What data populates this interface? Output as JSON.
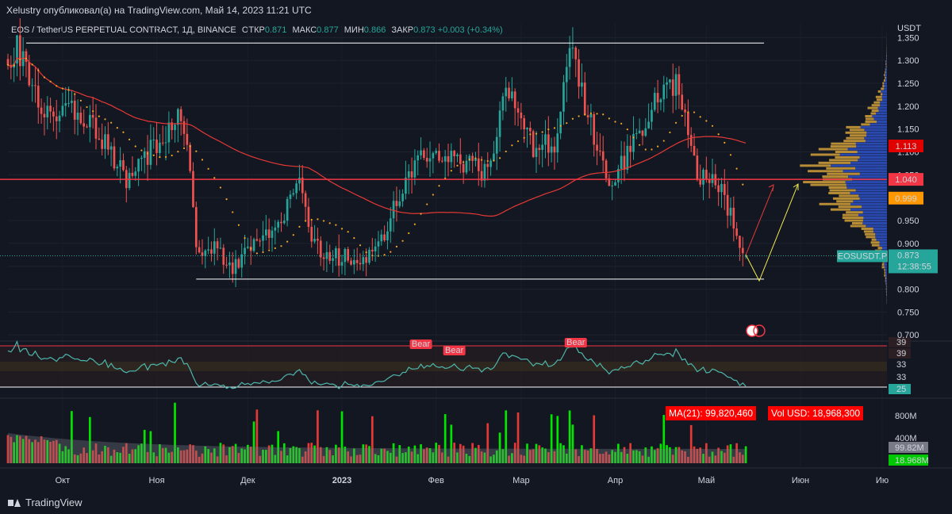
{
  "header": {
    "publisher_line": "Xelustry опубликовал(а) на TradingView.com, Май 14, 2023 11:21 UTC"
  },
  "legend": {
    "title": "EOS / TetherUS PERPETUAL CONTRACT, 1Д, BINANCE",
    "open_label": "ОТКР",
    "open_value": "0.871",
    "high_label": "МАКС",
    "high_value": "0.877",
    "low_label": "МИН",
    "low_value": "0.866",
    "close_label": "ЗАКР",
    "close_value": "0.873",
    "change": "+0.003 (+0.34%)"
  },
  "axis": {
    "currency": "USDT"
  },
  "colors": {
    "background": "#131722",
    "up": "#26a69a",
    "down": "#ef5350",
    "ma_slow": "#e53935",
    "ma_fast_dotted": "#f5a623",
    "level_line": "#f23645",
    "box_line": "#ffffff",
    "projection_red": "#e53935",
    "projection_yellow": "#f2e94e",
    "rsi_line": "#4db6ac",
    "vol_up": "#00e600",
    "vol_down": "#e53935",
    "vp_up": "#2e52c9",
    "vp_down": "#d4a13a"
  },
  "price_badges": [
    {
      "label": "1.113",
      "bg": "#e00000",
      "fg": "#ffffff",
      "price": 1.113
    },
    {
      "label": "1.040",
      "bg": "#f23645",
      "fg": "#ffffff",
      "price": 1.04
    },
    {
      "label": "0.999",
      "bg": "#ff9800",
      "fg": "#000000",
      "price": 0.999
    }
  ],
  "current_price_badge": {
    "symbol": "EOSUSDT.P",
    "price": "0.873",
    "countdown": "12:38:55",
    "bg": "#26a69a",
    "value": 0.873
  },
  "rsi_panel": {
    "labels": [
      "39",
      "39",
      "33",
      "33",
      "25"
    ],
    "level_top": 39,
    "level_bottom": 25,
    "bear_label": "Bear"
  },
  "volume_panel": {
    "ma_box": "MA(21): 99,820,460",
    "vol_box": "Vol USD: 18,968,300",
    "labels": [
      {
        "text": "800M",
        "bg": "",
        "fg": "#d1d4dc"
      },
      {
        "text": "400M",
        "bg": "",
        "fg": "#d1d4dc"
      },
      {
        "text": "99.82M",
        "bg": "#787b86",
        "fg": "#ffffff"
      },
      {
        "text": "18.968M",
        "bg": "#00c800",
        "fg": "#000000"
      }
    ]
  },
  "footer": {
    "logo_text": "TradingView"
  },
  "chart_data": {
    "type": "candlestick",
    "title": "EOS / TetherUS PERPETUAL CONTRACT, 1Д, BINANCE",
    "ylabel": "USDT",
    "ylim": [
      0.69,
      1.38
    ],
    "y_ticks": [
      "1.350",
      "1.300",
      "1.250",
      "1.200",
      "1.150",
      "1.100",
      "1.050",
      "1.000",
      "0.950",
      "0.900",
      "0.850",
      "0.800",
      "0.750",
      "0.700"
    ],
    "x_ticks": [
      "Окт",
      "Ноя",
      "Дек",
      "2023",
      "Фев",
      "Мар",
      "Апр",
      "Май",
      "Июн",
      "Ию"
    ],
    "date_start": "2022-09-13",
    "date_end": "2023-06-30",
    "last_candle_date": "2023-05-14",
    "levels": {
      "horizontal_red": 1.04,
      "box_top": 1.338,
      "box_bottom": 0.822
    },
    "key_points": [
      {
        "date": "2022-09-13",
        "price": 1.3
      },
      {
        "date": "2022-09-16",
        "price": 1.33
      },
      {
        "date": "2022-09-24",
        "price": 1.2
      },
      {
        "date": "2022-10-09",
        "price": 1.18
      },
      {
        "date": "2022-10-22",
        "price": 1.04
      },
      {
        "date": "2022-11-01",
        "price": 1.12
      },
      {
        "date": "2022-11-09",
        "price": 1.19
      },
      {
        "date": "2022-11-12",
        "price": 1.08
      },
      {
        "date": "2022-11-14",
        "price": 0.88
      },
      {
        "date": "2022-11-18",
        "price": 0.9
      },
      {
        "date": "2022-11-26",
        "price": 0.85
      },
      {
        "date": "2022-12-10",
        "price": 0.93
      },
      {
        "date": "2022-12-18",
        "price": 1.03
      },
      {
        "date": "2022-12-22",
        "price": 0.9
      },
      {
        "date": "2022-12-28",
        "price": 0.87
      },
      {
        "date": "2023-01-08",
        "price": 0.87
      },
      {
        "date": "2023-01-15",
        "price": 0.92
      },
      {
        "date": "2023-01-22",
        "price": 1.05
      },
      {
        "date": "2023-01-30",
        "price": 1.1
      },
      {
        "date": "2023-02-08",
        "price": 1.08
      },
      {
        "date": "2023-02-18",
        "price": 1.05
      },
      {
        "date": "2023-02-24",
        "price": 1.24
      },
      {
        "date": "2023-03-05",
        "price": 1.11
      },
      {
        "date": "2023-03-13",
        "price": 1.12
      },
      {
        "date": "2023-03-17",
        "price": 1.33
      },
      {
        "date": "2023-03-22",
        "price": 1.2
      },
      {
        "date": "2023-03-30",
        "price": 1.04
      },
      {
        "date": "2023-04-06",
        "price": 1.1
      },
      {
        "date": "2023-04-14",
        "price": 1.22
      },
      {
        "date": "2023-04-22",
        "price": 1.25
      },
      {
        "date": "2023-04-28",
        "price": 1.05
      },
      {
        "date": "2023-05-05",
        "price": 1.03
      },
      {
        "date": "2023-05-11",
        "price": 0.92
      },
      {
        "date": "2023-05-14",
        "price": 0.873
      }
    ]
  }
}
